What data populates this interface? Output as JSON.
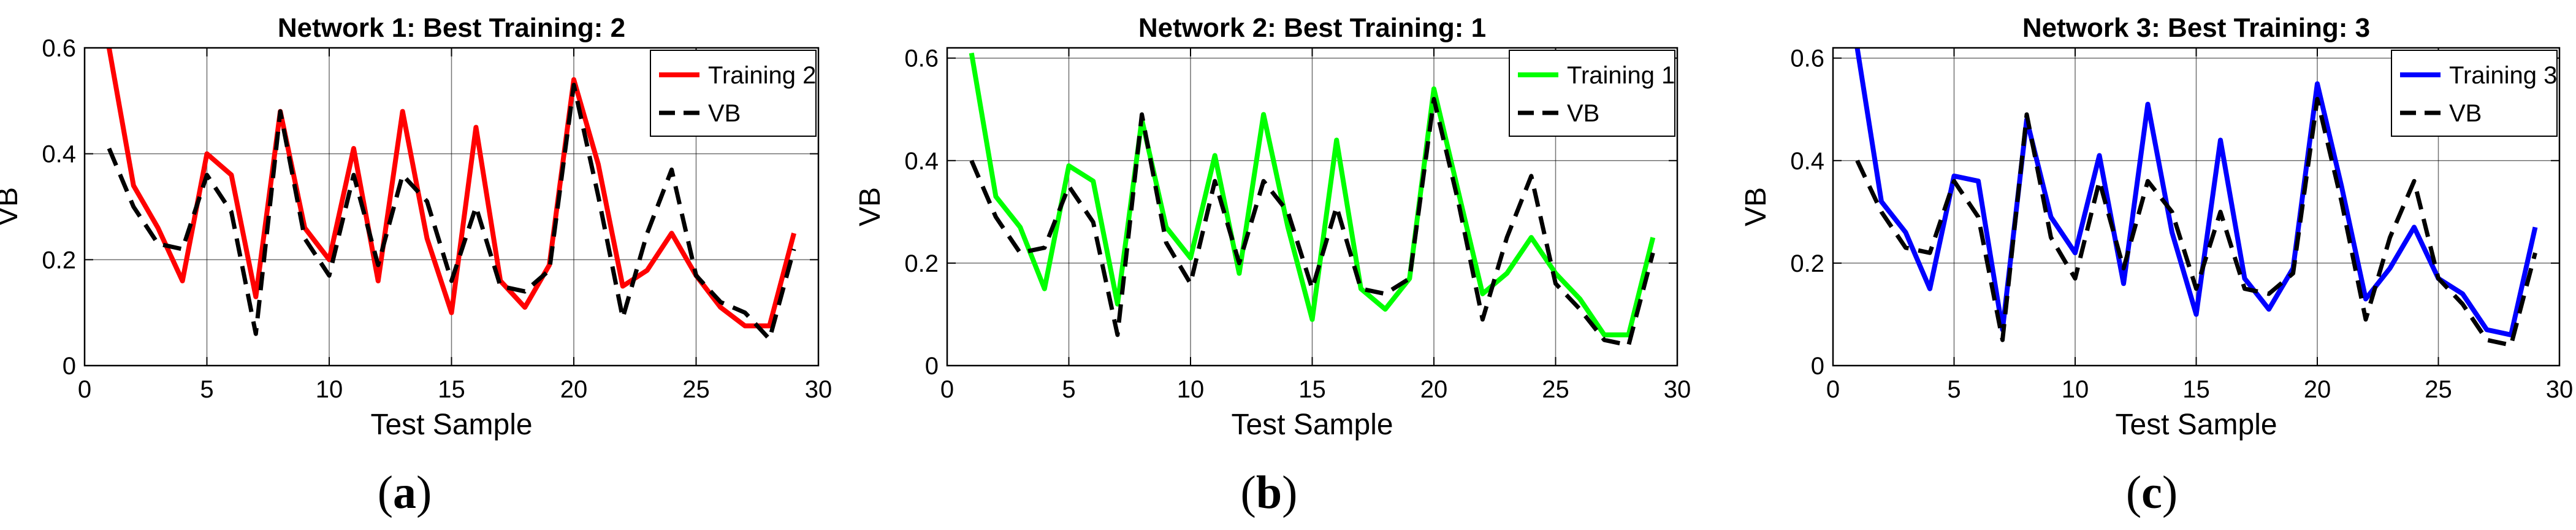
{
  "chart_data": [
    {
      "type": "line",
      "title": "Network 1: Best Training: 2",
      "xlabel": "Test Sample",
      "ylabel": "VB",
      "panel_label": "a",
      "xlim": [
        0,
        30
      ],
      "ylim": [
        0,
        0.6
      ],
      "xticks": [
        0,
        5,
        10,
        15,
        20,
        25,
        30
      ],
      "yticks": [
        0,
        0.2,
        0.4,
        0.6
      ],
      "xtick_labels": [
        "0",
        "5",
        "10",
        "15",
        "20",
        "25",
        "30"
      ],
      "ytick_labels": [
        "0",
        "0.2",
        "0.4",
        "0.6"
      ],
      "grid": true,
      "legend_position": "top-right",
      "x": [
        1,
        2,
        3,
        4,
        5,
        6,
        7,
        8,
        9,
        10,
        11,
        12,
        13,
        14,
        15,
        16,
        17,
        18,
        19,
        20,
        21,
        22,
        23,
        24,
        25,
        26,
        27,
        28,
        29
      ],
      "series": [
        {
          "name": "Training 2",
          "color": "#ff0000",
          "style": "solid",
          "values": [
            0.6,
            0.34,
            0.26,
            0.16,
            0.4,
            0.36,
            0.13,
            0.48,
            0.26,
            0.2,
            0.41,
            0.16,
            0.48,
            0.24,
            0.1,
            0.45,
            0.16,
            0.11,
            0.19,
            0.54,
            0.38,
            0.15,
            0.18,
            0.25,
            0.17,
            0.11,
            0.075,
            0.075,
            0.25
          ]
        },
        {
          "name": "VB",
          "color": "#000000",
          "style": "dashed",
          "values": [
            0.41,
            0.3,
            0.23,
            0.22,
            0.36,
            0.29,
            0.06,
            0.48,
            0.24,
            0.17,
            0.36,
            0.19,
            0.36,
            0.31,
            0.16,
            0.3,
            0.15,
            0.14,
            0.18,
            0.53,
            0.32,
            0.09,
            0.25,
            0.37,
            0.17,
            0.12,
            0.1,
            0.05,
            0.22
          ]
        }
      ]
    },
    {
      "type": "line",
      "title": "Network 2: Best Training: 1",
      "xlabel": "Test Sample",
      "ylabel": "VB",
      "panel_label": "b",
      "xlim": [
        0,
        30
      ],
      "ylim": [
        0,
        0.62
      ],
      "xticks": [
        0,
        5,
        10,
        15,
        20,
        25,
        30
      ],
      "yticks": [
        0,
        0.2,
        0.4,
        0.6
      ],
      "xtick_labels": [
        "0",
        "5",
        "10",
        "15",
        "20",
        "25",
        "30"
      ],
      "ytick_labels": [
        "0",
        "0.2",
        "0.4",
        "0.6"
      ],
      "grid": true,
      "legend_position": "top-right",
      "x": [
        1,
        2,
        3,
        4,
        5,
        6,
        7,
        8,
        9,
        10,
        11,
        12,
        13,
        14,
        15,
        16,
        17,
        18,
        19,
        20,
        21,
        22,
        23,
        24,
        25,
        26,
        27,
        28,
        29
      ],
      "series": [
        {
          "name": "Training 1",
          "color": "#00ff00",
          "style": "solid",
          "values": [
            0.61,
            0.33,
            0.27,
            0.15,
            0.39,
            0.36,
            0.12,
            0.48,
            0.27,
            0.21,
            0.41,
            0.18,
            0.49,
            0.27,
            0.09,
            0.44,
            0.15,
            0.11,
            0.17,
            0.54,
            0.34,
            0.14,
            0.18,
            0.25,
            0.18,
            0.13,
            0.06,
            0.06,
            0.25
          ]
        },
        {
          "name": "VB",
          "color": "#000000",
          "style": "dashed",
          "values": [
            0.4,
            0.29,
            0.22,
            0.23,
            0.35,
            0.28,
            0.06,
            0.49,
            0.24,
            0.16,
            0.36,
            0.2,
            0.36,
            0.3,
            0.15,
            0.31,
            0.15,
            0.14,
            0.17,
            0.52,
            0.32,
            0.09,
            0.25,
            0.37,
            0.16,
            0.11,
            0.05,
            0.04,
            0.22
          ]
        }
      ]
    },
    {
      "type": "line",
      "title": "Network 3: Best Training: 3",
      "xlabel": "Test Sample",
      "ylabel": "VB",
      "panel_label": "c",
      "xlim": [
        0,
        30
      ],
      "ylim": [
        0,
        0.62
      ],
      "xticks": [
        0,
        5,
        10,
        15,
        20,
        25,
        30
      ],
      "yticks": [
        0,
        0.2,
        0.4,
        0.6
      ],
      "xtick_labels": [
        "0",
        "5",
        "10",
        "15",
        "20",
        "25",
        "30"
      ],
      "ytick_labels": [
        "0",
        "0.2",
        "0.4",
        "0.6"
      ],
      "grid": true,
      "legend_position": "top-right",
      "x": [
        1,
        2,
        3,
        4,
        5,
        6,
        7,
        8,
        9,
        10,
        11,
        12,
        13,
        14,
        15,
        16,
        17,
        18,
        19,
        20,
        21,
        22,
        23,
        24,
        25,
        26,
        27,
        28,
        29
      ],
      "series": [
        {
          "name": "Training 3",
          "color": "#0000ff",
          "style": "solid",
          "values": [
            0.62,
            0.32,
            0.26,
            0.15,
            0.37,
            0.36,
            0.07,
            0.48,
            0.29,
            0.22,
            0.41,
            0.16,
            0.51,
            0.26,
            0.1,
            0.44,
            0.17,
            0.11,
            0.19,
            0.55,
            0.35,
            0.13,
            0.19,
            0.27,
            0.17,
            0.14,
            0.07,
            0.06,
            0.27
          ]
        },
        {
          "name": "VB",
          "color": "#000000",
          "style": "dashed",
          "values": [
            0.4,
            0.3,
            0.23,
            0.22,
            0.36,
            0.29,
            0.05,
            0.49,
            0.25,
            0.17,
            0.36,
            0.19,
            0.36,
            0.3,
            0.15,
            0.3,
            0.15,
            0.14,
            0.18,
            0.52,
            0.32,
            0.09,
            0.25,
            0.36,
            0.17,
            0.12,
            0.05,
            0.04,
            0.22
          ]
        }
      ]
    }
  ]
}
